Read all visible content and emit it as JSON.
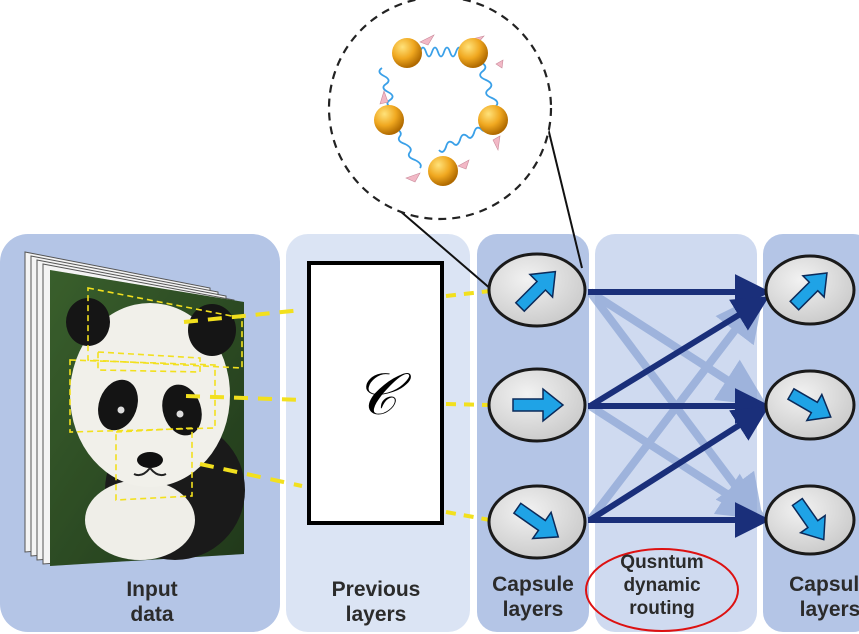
{
  "panels": {
    "input_data": "Input\ndata",
    "previous_layers": "Previous\nlayers",
    "capsule_layers_left": "Capsule\nlayers",
    "routing": "Qusntum\ndynamic\nrouting",
    "capsule_layers_right": "Capsule\nlayers"
  },
  "operator_symbol": "𝒞",
  "colors": {
    "panel_dark": "#b4c5e6",
    "panel_light": "#dbe4f4",
    "routing_panel": "#cfdaf0",
    "arrow_navy": "#1a2f7a",
    "capsule_arrow": "#1fa3e6",
    "connector_dashed": "#f2e01e",
    "qubit": "#f0a820",
    "spring": "#3aa0e8",
    "highlight_ellipse": "#dd1111"
  },
  "icons": {
    "input_image": "panda-photo-stack",
    "qubit_ring": "coupled-qubit-ring",
    "capsule_arrow": "vector-arrow-icon"
  }
}
